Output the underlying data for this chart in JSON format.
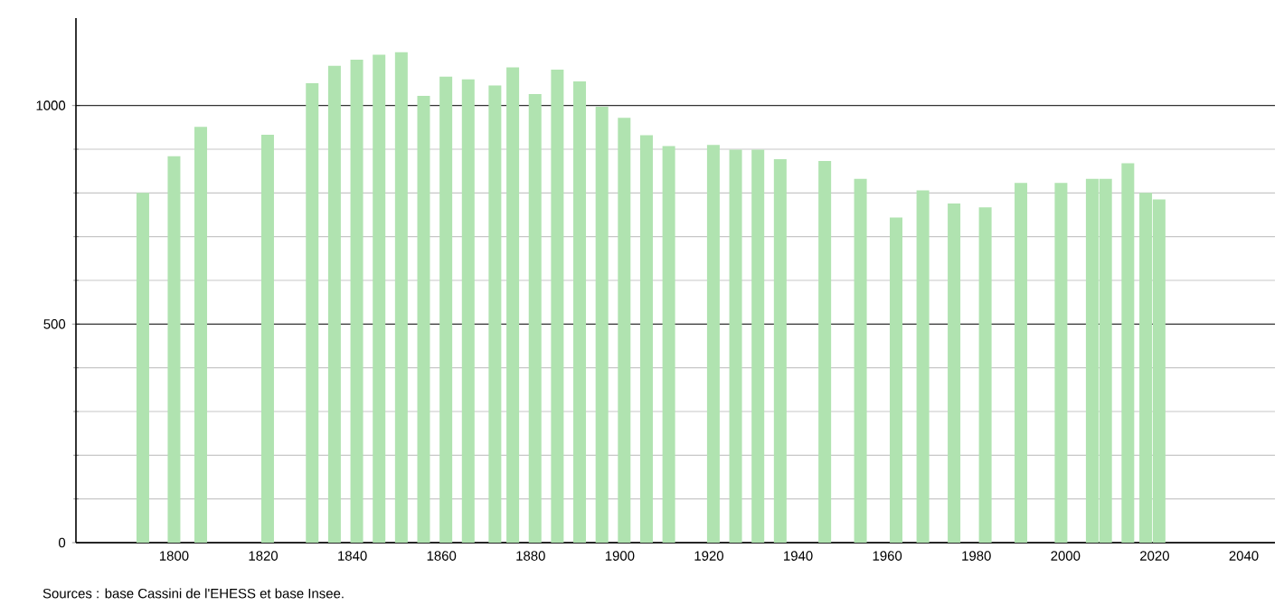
{
  "chart_data": {
    "type": "bar",
    "x": [
      1793,
      1800,
      1806,
      1821,
      1831,
      1836,
      1841,
      1846,
      1851,
      1856,
      1861,
      1866,
      1872,
      1876,
      1881,
      1886,
      1891,
      1896,
      1901,
      1906,
      1911,
      1921,
      1926,
      1931,
      1936,
      1946,
      1954,
      1962,
      1968,
      1975,
      1982,
      1990,
      1999,
      2006,
      2009,
      2014,
      2018,
      2021
    ],
    "values": [
      800,
      884,
      951,
      933,
      1051,
      1091,
      1105,
      1116,
      1122,
      1022,
      1066,
      1060,
      1046,
      1087,
      1026,
      1082,
      1055,
      997,
      972,
      932,
      907,
      910,
      899,
      899,
      877,
      873,
      832,
      744,
      806,
      776,
      767,
      823,
      823,
      832,
      832,
      868,
      800,
      785
    ],
    "color": "#b0e3b0",
    "xlim": [
      1778,
      2047
    ],
    "xticks": [
      1800,
      1820,
      1840,
      1860,
      1880,
      1900,
      1920,
      1940,
      1960,
      1980,
      2000,
      2020,
      2040
    ],
    "ylim": [
      0,
      1200
    ],
    "yticks": [
      0,
      500,
      1000
    ],
    "grid": "y",
    "annotations": [
      "Sources : base Cassini de l'EHESS et base Insee."
    ]
  }
}
